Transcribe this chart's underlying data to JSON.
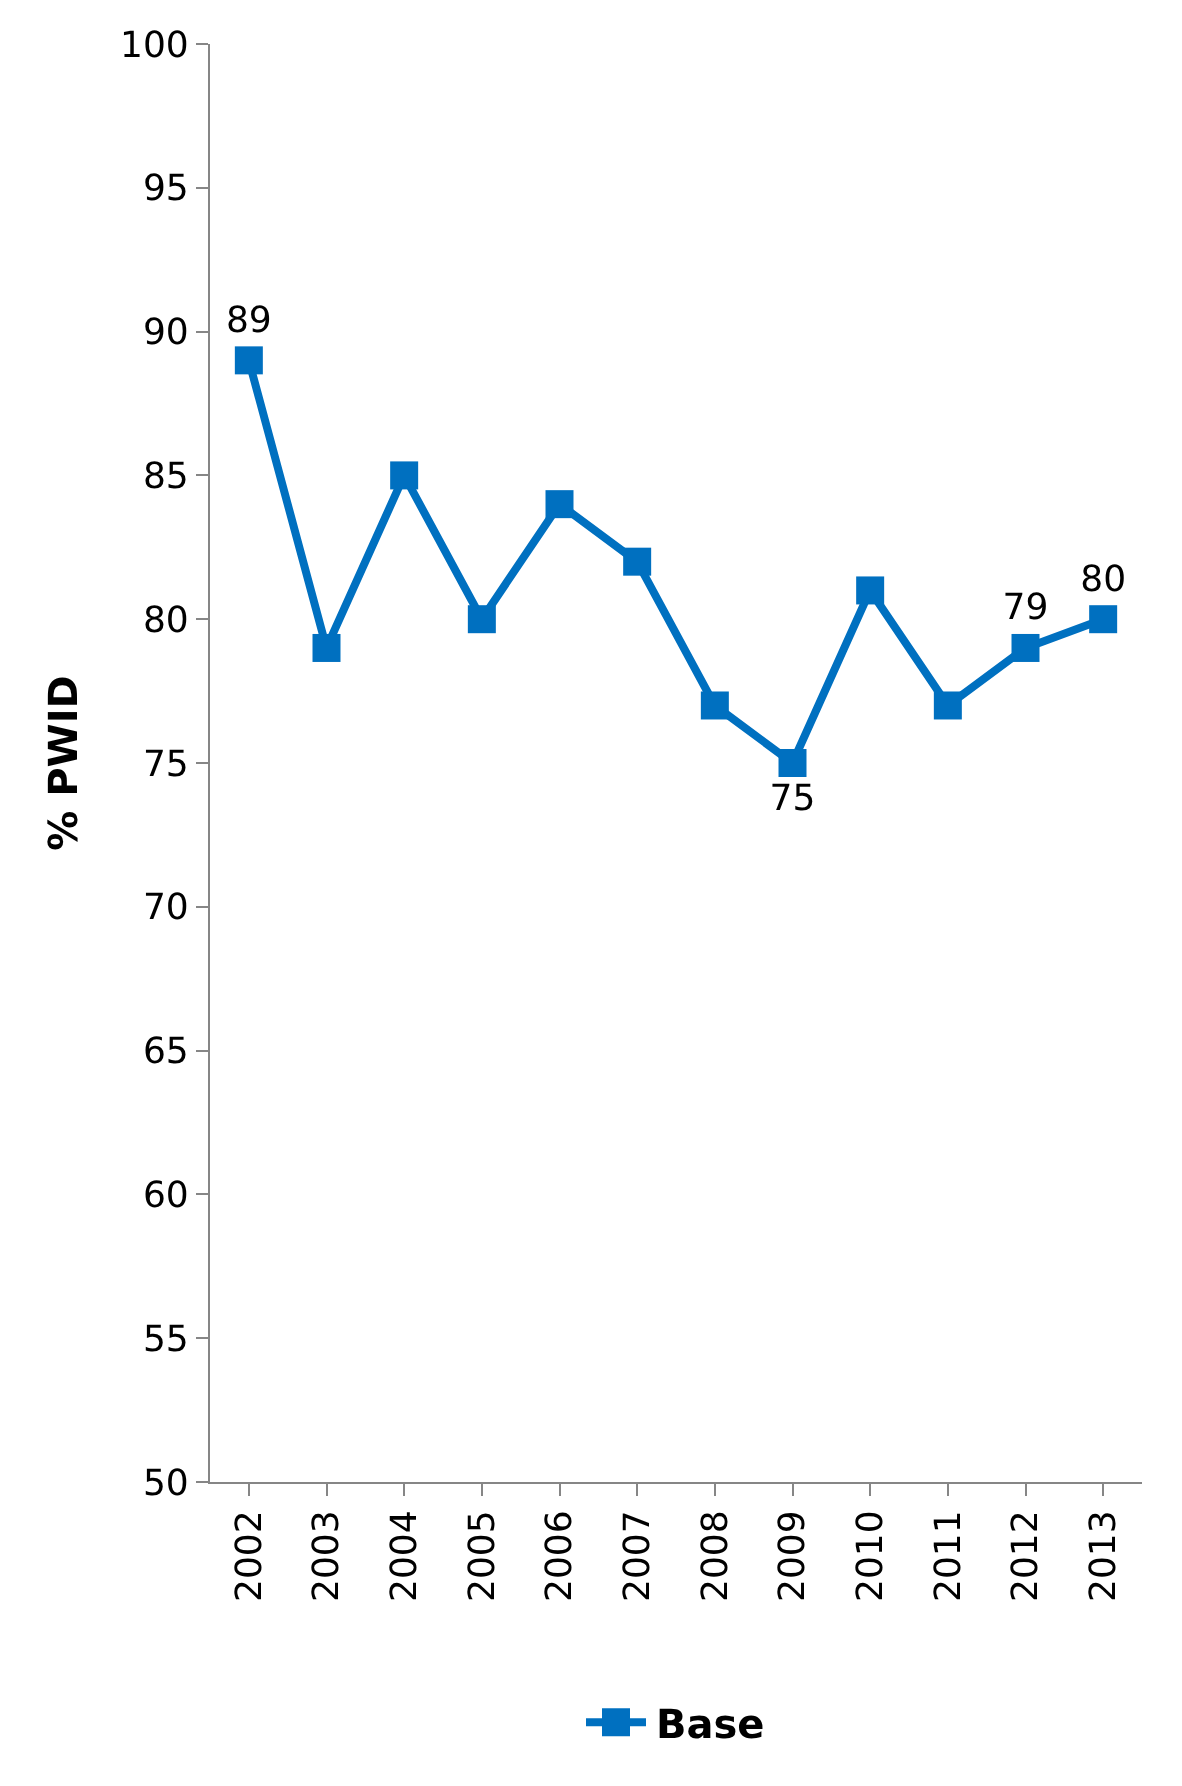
{
  "chart_data": {
    "type": "line",
    "ylabel": "% PWID",
    "categories": [
      "2002",
      "2003",
      "2004",
      "2005",
      "2006",
      "2007",
      "2008",
      "2009",
      "2010",
      "2011",
      "2012",
      "2013"
    ],
    "series": [
      {
        "name": "Base",
        "color": "#0070c0",
        "values": [
          89,
          79,
          85,
          80,
          84,
          82,
          77,
          75,
          81,
          77,
          79,
          80
        ],
        "value_labels": [
          "89",
          null,
          null,
          null,
          null,
          null,
          null,
          "75",
          null,
          null,
          "79",
          "80"
        ]
      }
    ],
    "ylim": [
      50,
      100
    ],
    "yticks": [
      50,
      55,
      60,
      65,
      70,
      75,
      80,
      85,
      90,
      95,
      100
    ],
    "grid": false,
    "legend": "bottom",
    "marker": "square",
    "line_style": "solid"
  }
}
